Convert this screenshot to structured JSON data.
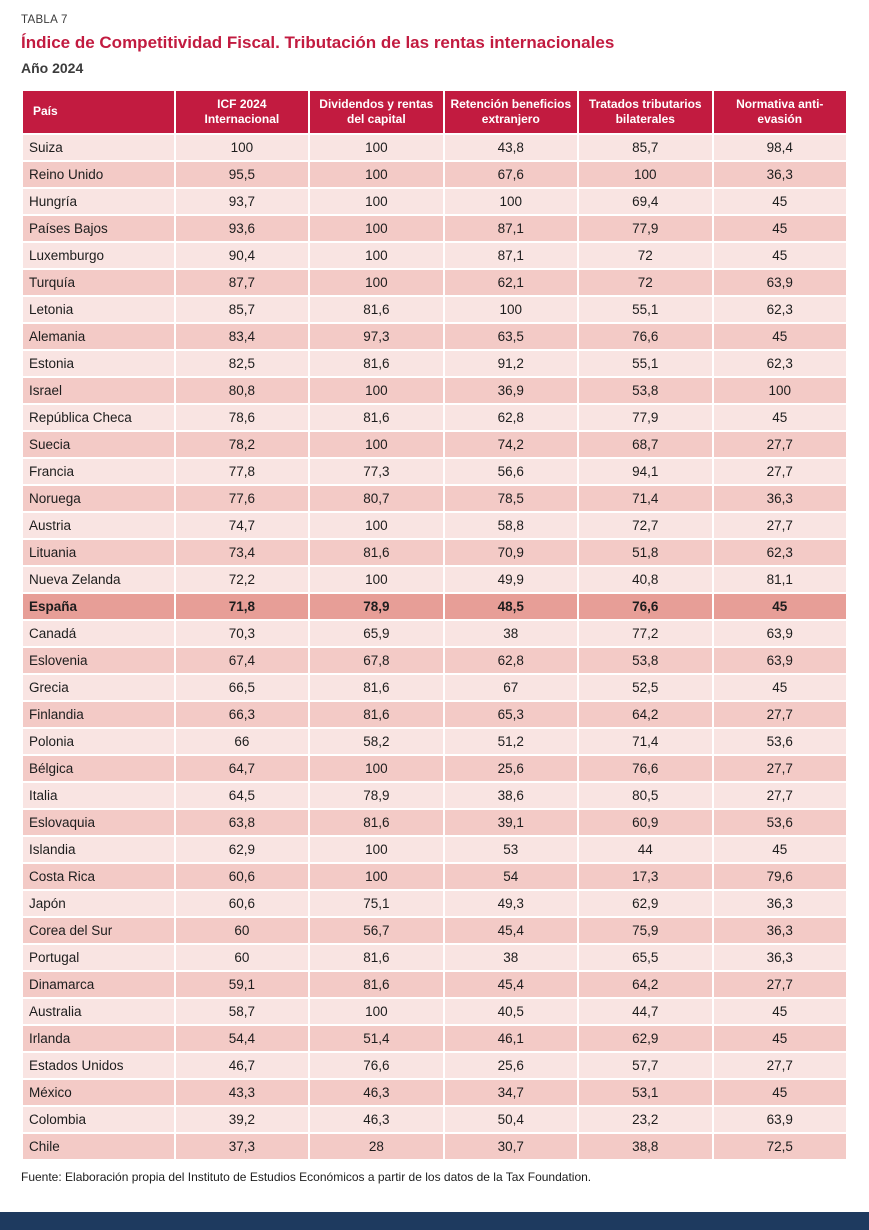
{
  "page": {
    "kicker": "TABLA 7",
    "title": "Índice de Competitividad Fiscal. Tributación de las rentas internacionales",
    "subtitle": "Año 2024",
    "source": "Fuente: Elaboración propia del Instituto de Estudios Económicos a partir de los datos de la Tax Foundation."
  },
  "chart_data": {
    "type": "table",
    "columns": [
      "País",
      "ICF 2024 Internacional",
      "Dividendos y rentas del capital",
      "Retención beneficios extranjero",
      "Tratados tributarios bilaterales",
      "Normativa anti-evasión"
    ],
    "highlight_country": "España",
    "rows": [
      {
        "country": "Suiza",
        "values": [
          "100",
          "100",
          "43,8",
          "85,7",
          "98,4"
        ]
      },
      {
        "country": "Reino Unido",
        "values": [
          "95,5",
          "100",
          "67,6",
          "100",
          "36,3"
        ]
      },
      {
        "country": "Hungría",
        "values": [
          "93,7",
          "100",
          "100",
          "69,4",
          "45"
        ]
      },
      {
        "country": "Países Bajos",
        "values": [
          "93,6",
          "100",
          "87,1",
          "77,9",
          "45"
        ]
      },
      {
        "country": "Luxemburgo",
        "values": [
          "90,4",
          "100",
          "87,1",
          "72",
          "45"
        ]
      },
      {
        "country": "Turquía",
        "values": [
          "87,7",
          "100",
          "62,1",
          "72",
          "63,9"
        ]
      },
      {
        "country": "Letonia",
        "values": [
          "85,7",
          "81,6",
          "100",
          "55,1",
          "62,3"
        ]
      },
      {
        "country": "Alemania",
        "values": [
          "83,4",
          "97,3",
          "63,5",
          "76,6",
          "45"
        ]
      },
      {
        "country": "Estonia",
        "values": [
          "82,5",
          "81,6",
          "91,2",
          "55,1",
          "62,3"
        ]
      },
      {
        "country": "Israel",
        "values": [
          "80,8",
          "100",
          "36,9",
          "53,8",
          "100"
        ]
      },
      {
        "country": "República Checa",
        "values": [
          "78,6",
          "81,6",
          "62,8",
          "77,9",
          "45"
        ]
      },
      {
        "country": "Suecia",
        "values": [
          "78,2",
          "100",
          "74,2",
          "68,7",
          "27,7"
        ]
      },
      {
        "country": "Francia",
        "values": [
          "77,8",
          "77,3",
          "56,6",
          "94,1",
          "27,7"
        ]
      },
      {
        "country": "Noruega",
        "values": [
          "77,6",
          "80,7",
          "78,5",
          "71,4",
          "36,3"
        ]
      },
      {
        "country": "Austria",
        "values": [
          "74,7",
          "100",
          "58,8",
          "72,7",
          "27,7"
        ]
      },
      {
        "country": "Lituania",
        "values": [
          "73,4",
          "81,6",
          "70,9",
          "51,8",
          "62,3"
        ]
      },
      {
        "country": "Nueva Zelanda",
        "values": [
          "72,2",
          "100",
          "49,9",
          "40,8",
          "81,1"
        ]
      },
      {
        "country": "España",
        "values": [
          "71,8",
          "78,9",
          "48,5",
          "76,6",
          "45"
        ]
      },
      {
        "country": "Canadá",
        "values": [
          "70,3",
          "65,9",
          "38",
          "77,2",
          "63,9"
        ]
      },
      {
        "country": "Eslovenia",
        "values": [
          "67,4",
          "67,8",
          "62,8",
          "53,8",
          "63,9"
        ]
      },
      {
        "country": "Grecia",
        "values": [
          "66,5",
          "81,6",
          "67",
          "52,5",
          "45"
        ]
      },
      {
        "country": "Finlandia",
        "values": [
          "66,3",
          "81,6",
          "65,3",
          "64,2",
          "27,7"
        ]
      },
      {
        "country": "Polonia",
        "values": [
          "66",
          "58,2",
          "51,2",
          "71,4",
          "53,6"
        ]
      },
      {
        "country": "Bélgica",
        "values": [
          "64,7",
          "100",
          "25,6",
          "76,6",
          "27,7"
        ]
      },
      {
        "country": "Italia",
        "values": [
          "64,5",
          "78,9",
          "38,6",
          "80,5",
          "27,7"
        ]
      },
      {
        "country": "Eslovaquia",
        "values": [
          "63,8",
          "81,6",
          "39,1",
          "60,9",
          "53,6"
        ]
      },
      {
        "country": "Islandia",
        "values": [
          "62,9",
          "100",
          "53",
          "44",
          "45"
        ]
      },
      {
        "country": "Costa Rica",
        "values": [
          "60,6",
          "100",
          "54",
          "17,3",
          "79,6"
        ]
      },
      {
        "country": "Japón",
        "values": [
          "60,6",
          "75,1",
          "49,3",
          "62,9",
          "36,3"
        ]
      },
      {
        "country": "Corea del Sur",
        "values": [
          "60",
          "56,7",
          "45,4",
          "75,9",
          "36,3"
        ]
      },
      {
        "country": "Portugal",
        "values": [
          "60",
          "81,6",
          "38",
          "65,5",
          "36,3"
        ]
      },
      {
        "country": "Dinamarca",
        "values": [
          "59,1",
          "81,6",
          "45,4",
          "64,2",
          "27,7"
        ]
      },
      {
        "country": "Australia",
        "values": [
          "58,7",
          "100",
          "40,5",
          "44,7",
          "45"
        ]
      },
      {
        "country": "Irlanda",
        "values": [
          "54,4",
          "51,4",
          "46,1",
          "62,9",
          "45"
        ]
      },
      {
        "country": "Estados Unidos",
        "values": [
          "46,7",
          "76,6",
          "25,6",
          "57,7",
          "27,7"
        ]
      },
      {
        "country": "México",
        "values": [
          "43,3",
          "46,3",
          "34,7",
          "53,1",
          "45"
        ]
      },
      {
        "country": "Colombia",
        "values": [
          "39,2",
          "46,3",
          "50,4",
          "23,2",
          "63,9"
        ]
      },
      {
        "country": "Chile",
        "values": [
          "37,3",
          "28",
          "30,7",
          "38,8",
          "72,5"
        ]
      }
    ]
  },
  "colors": {
    "header_bg": "#c21b40",
    "title": "#c21b40",
    "row_light": "#f9e4e2",
    "row_dark": "#f3cac6",
    "highlight_bg": "#e79e97",
    "footer_bar": "#1e3a5f"
  }
}
